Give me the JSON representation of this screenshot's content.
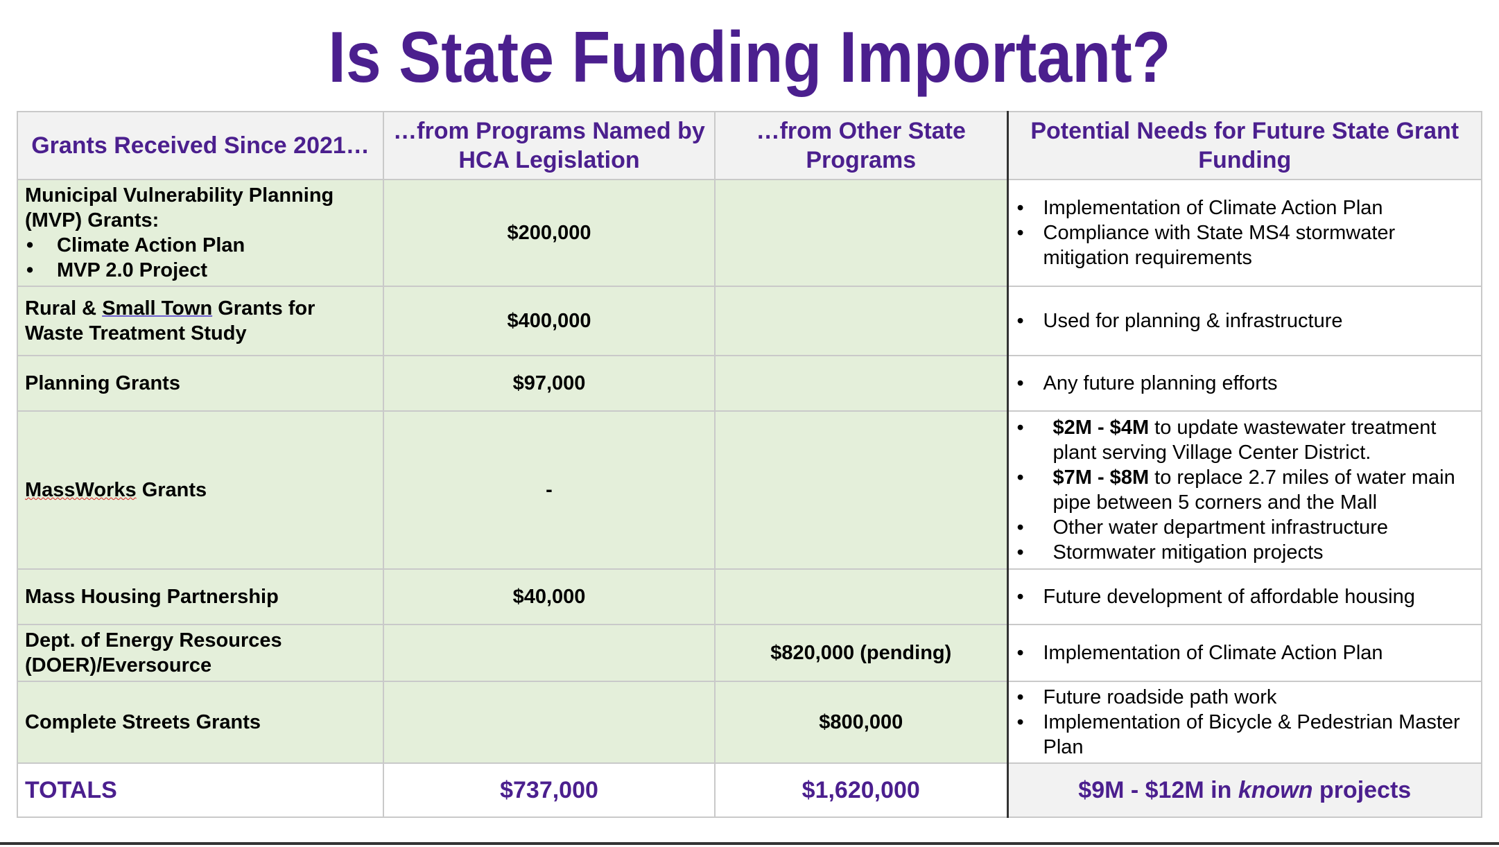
{
  "title": "Is State Funding Important?",
  "headers": [
    "Grants Received Since 2021…",
    "…from Programs Named by HCA Legislation",
    "…from Other State Programs",
    "Potential Needs for Future State Grant Funding"
  ],
  "rows": [
    {
      "label": "Municipal Vulnerability Planning (MVP) Grants:",
      "sub": [
        "Climate Action Plan",
        "MVP 2.0 Project"
      ],
      "hca": "$200,000",
      "other": "",
      "needs": [
        "Implementation of Climate Action Plan",
        "Compliance with State MS4 stormwater mitigation requirements"
      ]
    },
    {
      "label_a": "Rural & ",
      "label_b": "Small Town",
      "label_c": " Grants for Waste Treatment Study",
      "hca": "$400,000",
      "other": "",
      "needs": [
        "Used for planning & infrastructure"
      ]
    },
    {
      "label": "Planning Grants",
      "hca": "$97,000",
      "other": "",
      "needs": [
        "Any future planning efforts"
      ]
    },
    {
      "label_a": "MassWorks",
      "label_b": " Grants",
      "hca": "-",
      "other": "",
      "needs": [
        {
          "bold": "$2M - $4M",
          "text": " to update wastewater treatment plant serving Village Center District."
        },
        {
          "bold": "$7M - $8M",
          "text": " to replace 2.7 miles of water main pipe between 5 corners and the Mall"
        },
        {
          "text": "Other water department infrastructure"
        },
        {
          "text": "Stormwater mitigation projects"
        }
      ]
    },
    {
      "label": "Mass Housing Partnership",
      "hca": "$40,000",
      "other": "",
      "needs": [
        "Future development of affordable housing"
      ]
    },
    {
      "label": "Dept. of Energy Resources (DOER)/Eversource",
      "hca": "",
      "other": "$820,000 (pending)",
      "needs": [
        "Implementation of Climate Action Plan"
      ]
    },
    {
      "label": "Complete Streets Grants",
      "hca": "",
      "other": "$800,000",
      "needs": [
        "Future roadside path work",
        "Implementation of Bicycle & Pedestrian Master Plan"
      ]
    }
  ],
  "totals": {
    "label": "TOTALS",
    "hca": "$737,000",
    "other": "$1,620,000",
    "needs_a": "$9M - $12M in ",
    "needs_b": "known",
    "needs_c": " projects"
  },
  "colors": {
    "title": "#4b1f8e",
    "green_cell": "#e4efda",
    "header_bg": "#f2f2f2"
  }
}
